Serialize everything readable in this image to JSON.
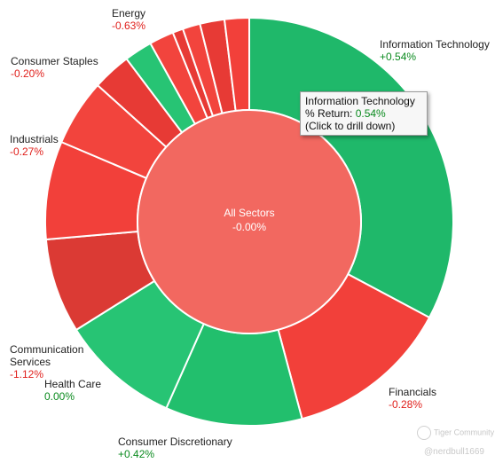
{
  "center": {
    "title": "All Sectors",
    "value": "-0.00%"
  },
  "sectors": [
    {
      "name": "Information Technology",
      "ret": "+0.54%",
      "color": "#1fb86a"
    },
    {
      "name": "Financials",
      "ret": "-0.28%",
      "color": "#f2403a"
    },
    {
      "name": "Consumer Discretionary",
      "ret": "+0.42%",
      "color": "#22bf6d"
    },
    {
      "name": "Health Care",
      "ret": "0.00%",
      "color": "#27c474"
    },
    {
      "name": "Communication Services",
      "ret": "-1.12%",
      "color": "#d93832"
    },
    {
      "name": "Industrials",
      "ret": "-0.27%",
      "color": "#f2403a"
    },
    {
      "name": "Consumer Staples",
      "ret": "-0.20%",
      "color": "#f2443d"
    },
    {
      "name": "Energy",
      "ret": "-0.63%",
      "color": "#e73a35"
    }
  ],
  "tooltip": {
    "title": "Information Technology",
    "label": "% Return:",
    "value": "0.54%",
    "hint": "(Click to drill down)"
  },
  "watermark": {
    "brand": "Tiger Community",
    "user": "@nerdbull1669"
  },
  "colors": {
    "center": "#f26860",
    "pos": "#0a8a1e",
    "neg": "#e0201c"
  }
}
